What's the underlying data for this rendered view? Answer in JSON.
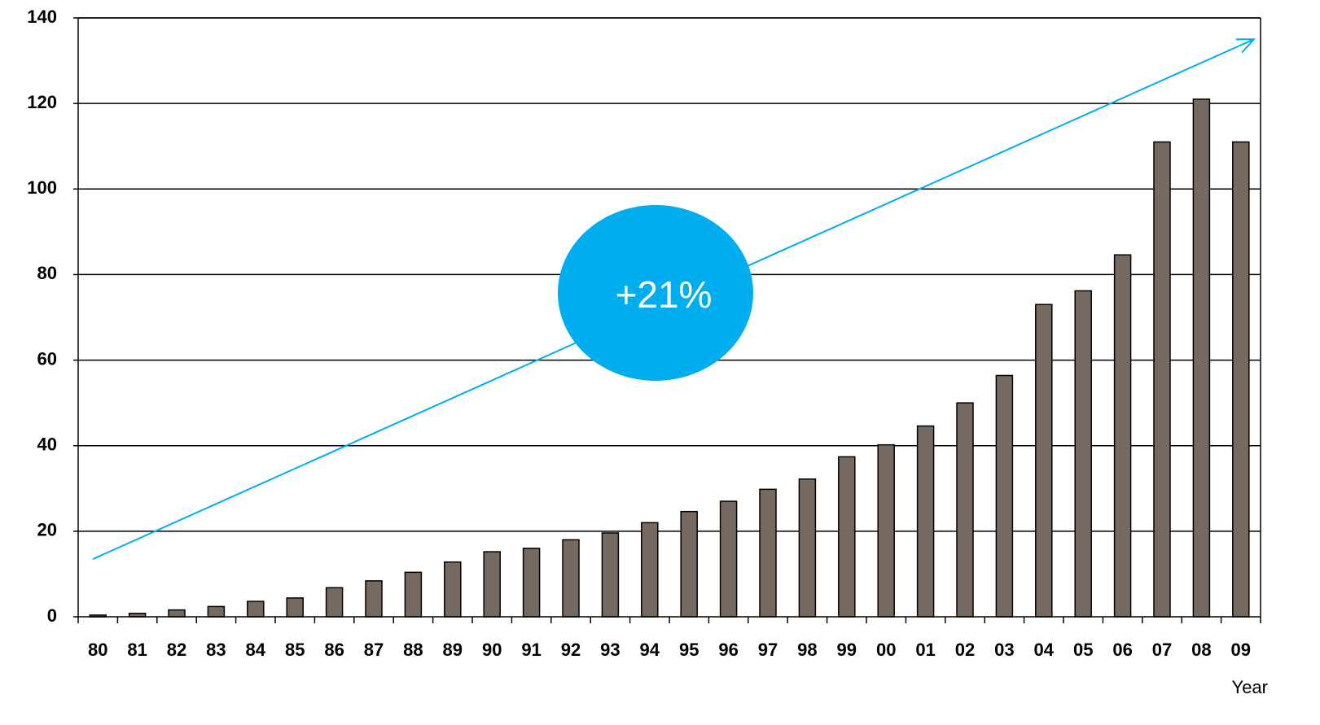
{
  "chart_data": {
    "type": "bar",
    "categories": [
      "80",
      "81",
      "82",
      "83",
      "84",
      "85",
      "86",
      "87",
      "88",
      "89",
      "90",
      "91",
      "92",
      "93",
      "94",
      "95",
      "96",
      "97",
      "98",
      "99",
      "00",
      "01",
      "02",
      "03",
      "04",
      "05",
      "06",
      "07",
      "08",
      "09"
    ],
    "values": [
      0.4,
      0.8,
      1.6,
      2.4,
      3.6,
      4.4,
      6.8,
      8.4,
      10.4,
      12.8,
      15.2,
      16.0,
      18.0,
      19.6,
      22.0,
      24.6,
      27.0,
      29.8,
      32.2,
      37.4,
      40.2,
      44.6,
      50.0,
      56.4,
      73.0,
      76.2,
      84.6,
      111.0,
      121.0,
      111.0
    ],
    "xlabel": "Year",
    "ylabel": "",
    "ylim": [
      0,
      140
    ],
    "yticks": [
      0,
      20,
      40,
      60,
      80,
      100,
      120,
      140
    ],
    "grid": true,
    "bar_color": "#766960",
    "annotation": {
      "text": "+21%",
      "color": "#00AEEF",
      "arrow_start": [
        "80",
        13.5
      ],
      "arrow_end": [
        "09",
        135
      ]
    }
  }
}
